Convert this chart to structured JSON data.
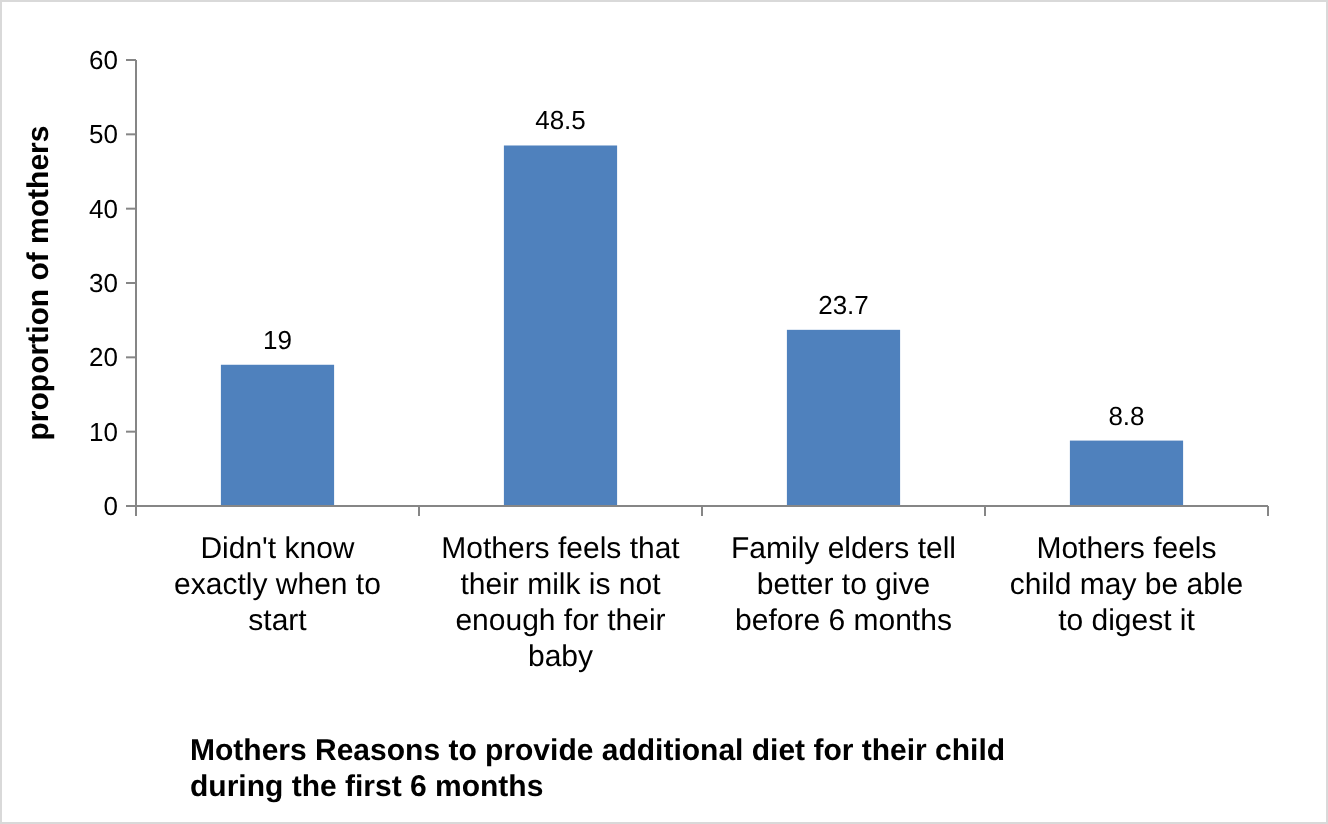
{
  "chart_data": {
    "type": "bar",
    "title": "Mothers Reasons to provide additional diet for their child during the first 6 months",
    "ylabel": "proportion of mothers",
    "categories": [
      "Didn't know exactly when to start",
      "Mothers feels that their milk is not enough for their baby",
      "Family elders tell better to give before 6 months",
      "Mothers feels child may be able to digest it"
    ],
    "values": [
      19,
      48.5,
      23.7,
      8.8
    ],
    "color": "#4f81bd",
    "ylim": [
      0,
      60
    ],
    "yticks": [
      0,
      10,
      20,
      30,
      40,
      50,
      60
    ],
    "grid": false,
    "data_labels": true
  }
}
